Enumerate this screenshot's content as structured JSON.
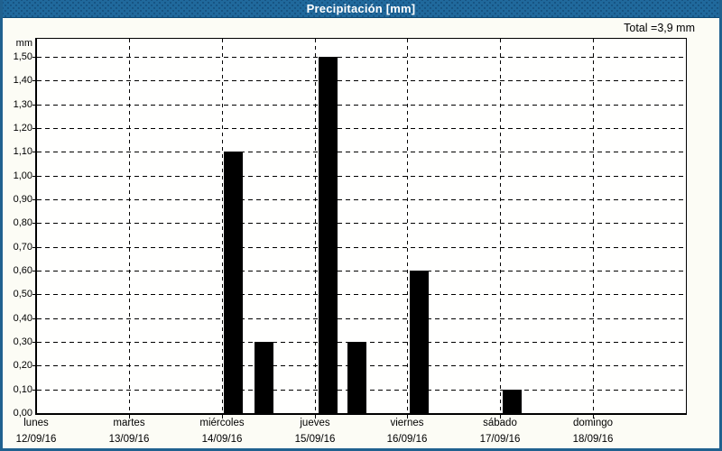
{
  "window": {
    "title": "Precipitación [mm]",
    "colors": {
      "titlebar": "#20699c",
      "titlebar_text": "#ffffff",
      "frame": "#20618f",
      "background": "#fcfcf5",
      "plot_background": "#fffffe",
      "bar": "#000000",
      "grid": "#000000",
      "text": "#000000"
    }
  },
  "chart_data": {
    "type": "bar",
    "title": "Precipitación [mm]",
    "unit": "mm",
    "ylabel": "mm",
    "total_label": "Total =3,9 mm",
    "total_value_mm": 3.9,
    "ylim": [
      0,
      1.576
    ],
    "y_tick_step": 0.1,
    "y_tick_labels": [
      "0,00",
      "0,10",
      "0,20",
      "0,30",
      "0,40",
      "0,50",
      "0,60",
      "0,70",
      "0,80",
      "0,90",
      "1,00",
      "1,10",
      "1,20",
      "1,30",
      "1,40",
      "1,50"
    ],
    "grid": "dashed",
    "legend": "none",
    "days": [
      {
        "name": "lunes",
        "date": "12/09/16"
      },
      {
        "name": "martes",
        "date": "13/09/16"
      },
      {
        "name": "miércoles",
        "date": "14/09/16"
      },
      {
        "name": "jueves",
        "date": "15/09/16"
      },
      {
        "name": "viernes",
        "date": "16/09/16"
      },
      {
        "name": "sábado",
        "date": "17/09/16"
      },
      {
        "name": "domingo",
        "date": "18/09/16"
      }
    ],
    "bars": [
      {
        "day_index": 2,
        "day": "miércoles",
        "hour": 3,
        "value_mm": 1.1
      },
      {
        "day_index": 2,
        "day": "miércoles",
        "hour": 11,
        "value_mm": 0.3
      },
      {
        "day_index": 3,
        "day": "jueves",
        "hour": 3.5,
        "value_mm": 1.5
      },
      {
        "day_index": 3,
        "day": "jueves",
        "hour": 11,
        "value_mm": 0.3
      },
      {
        "day_index": 4,
        "day": "viernes",
        "hour": 3,
        "value_mm": 0.6
      },
      {
        "day_index": 5,
        "day": "sábado",
        "hour": 3,
        "value_mm": 0.1
      }
    ]
  }
}
